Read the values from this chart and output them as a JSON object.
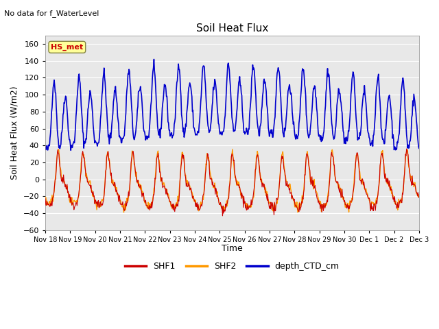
{
  "title": "Soil Heat Flux",
  "top_left_text": "No data for f_WaterLevel",
  "ylabel": "Soil Heat Flux (W/m2)",
  "xlabel": "Time",
  "ylim": [
    -60,
    170
  ],
  "yticks": [
    -60,
    -40,
    -20,
    0,
    20,
    40,
    60,
    80,
    100,
    120,
    140,
    160
  ],
  "xtick_labels": [
    "Nov 18",
    "Nov 19",
    "Nov 20",
    "Nov 21",
    "Nov 22",
    "Nov 23",
    "Nov 24",
    "Nov 25",
    "Nov 26",
    "Nov 27",
    "Nov 28",
    "Nov 29",
    "Nov 30",
    "Dec 1",
    "Dec 2",
    "Dec 3"
  ],
  "legend_entries": [
    "SHF1",
    "SHF2",
    "depth_CTD_cm"
  ],
  "shf1_color": "#cc0000",
  "shf2_color": "#ff9900",
  "depth_color": "#0000cc",
  "annotation_text": "HS_met",
  "annotation_color": "#cc0000",
  "annotation_bg": "#ffff99",
  "axes_bg": "#e8e8e8",
  "grid_color": "#ffffff"
}
